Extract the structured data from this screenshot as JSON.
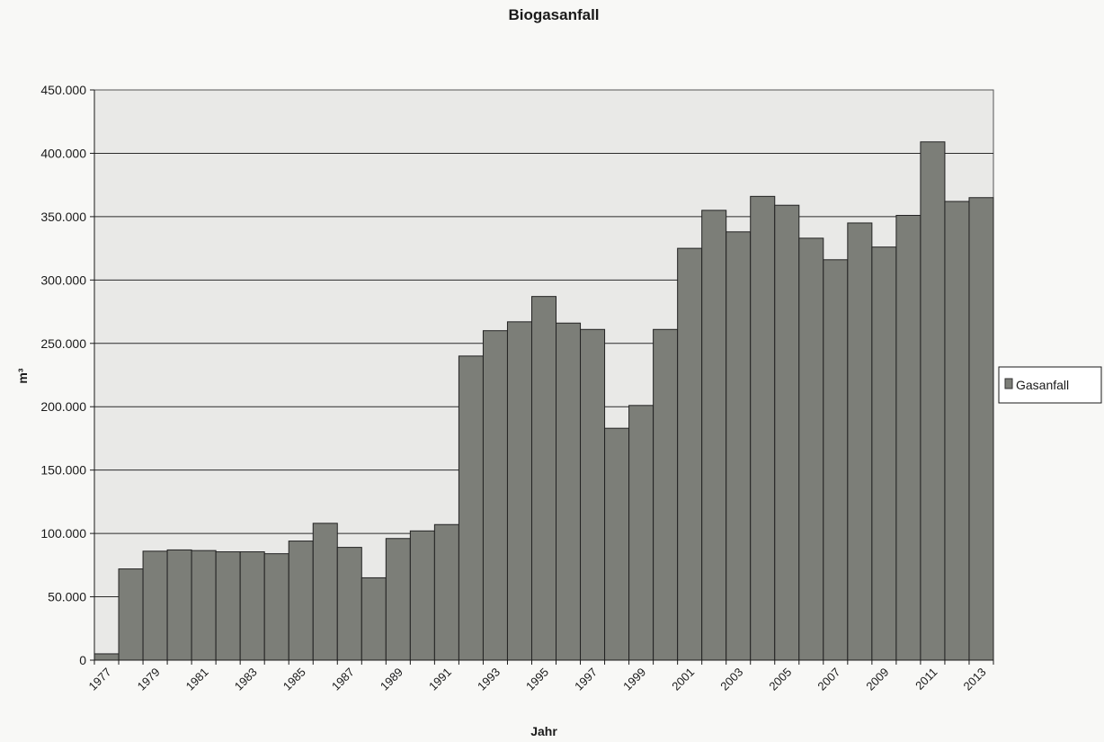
{
  "chart_data": {
    "type": "bar",
    "title": "Biogasanfall",
    "xlabel": "Jahr",
    "ylabel": "m³",
    "ylim": [
      0,
      450000
    ],
    "yticks": [
      "0",
      "50.000",
      "100.000",
      "150.000",
      "200.000",
      "250.000",
      "300.000",
      "350.000",
      "400.000",
      "450.000"
    ],
    "ytick_values": [
      0,
      50000,
      100000,
      150000,
      200000,
      250000,
      300000,
      350000,
      400000,
      450000
    ],
    "xtick_labels": [
      "1977",
      "1979",
      "1981",
      "1983",
      "1985",
      "1987",
      "1989",
      "1991",
      "1993",
      "1995",
      "1997",
      "1999",
      "2001",
      "2003",
      "2005",
      "2007",
      "2009",
      "2011",
      "2013"
    ],
    "grid": true,
    "legend_position": "right",
    "colors": {
      "bar": "#7c7e78",
      "plot_bg": "#e9e9e7",
      "grid": "#2a2a2a"
    },
    "categories": [
      "1977",
      "1978",
      "1979",
      "1980",
      "1981",
      "1982",
      "1983",
      "1984",
      "1985",
      "1986",
      "1987",
      "1988",
      "1989",
      "1990",
      "1991",
      "1992",
      "1993",
      "1994",
      "1995",
      "1996",
      "1997",
      "1998",
      "1999",
      "2000",
      "2001",
      "2002",
      "2003",
      "2004",
      "2005",
      "2006",
      "2007",
      "2008",
      "2009",
      "2010",
      "2011",
      "2012",
      "2013"
    ],
    "series": [
      {
        "name": "Gasanfall",
        "values": [
          5000,
          72000,
          86000,
          87000,
          86500,
          85500,
          85500,
          84000,
          94000,
          108000,
          89000,
          65000,
          96000,
          102000,
          107000,
          240000,
          260000,
          267000,
          287000,
          266000,
          261000,
          183000,
          201000,
          261000,
          325000,
          355000,
          338000,
          366000,
          359000,
          333000,
          316000,
          345000,
          326000,
          351000,
          409000,
          362000,
          365000
        ]
      }
    ]
  }
}
